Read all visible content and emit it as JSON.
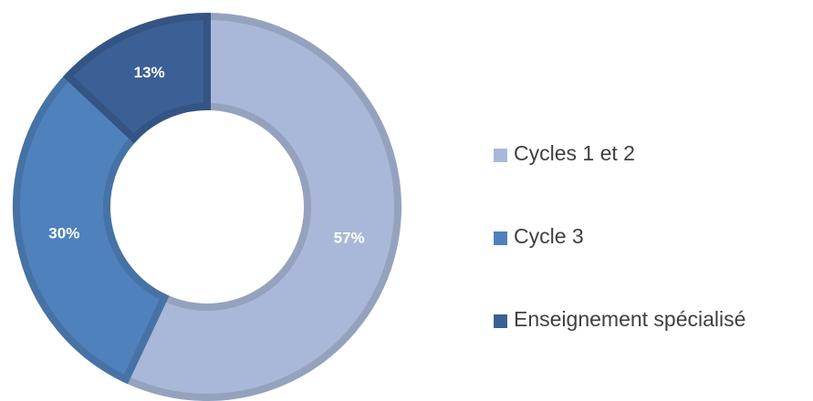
{
  "chart_data": {
    "type": "donut",
    "categories": [
      "Cycles 1 et 2",
      "Cycle 3",
      "Enseignement spécialisé"
    ],
    "values": [
      57,
      30,
      13
    ],
    "value_labels": [
      "57%",
      "30%",
      "13%"
    ],
    "colors": [
      "#a9b8d8",
      "#4f81bd",
      "#3b6096"
    ],
    "legend": "right"
  }
}
